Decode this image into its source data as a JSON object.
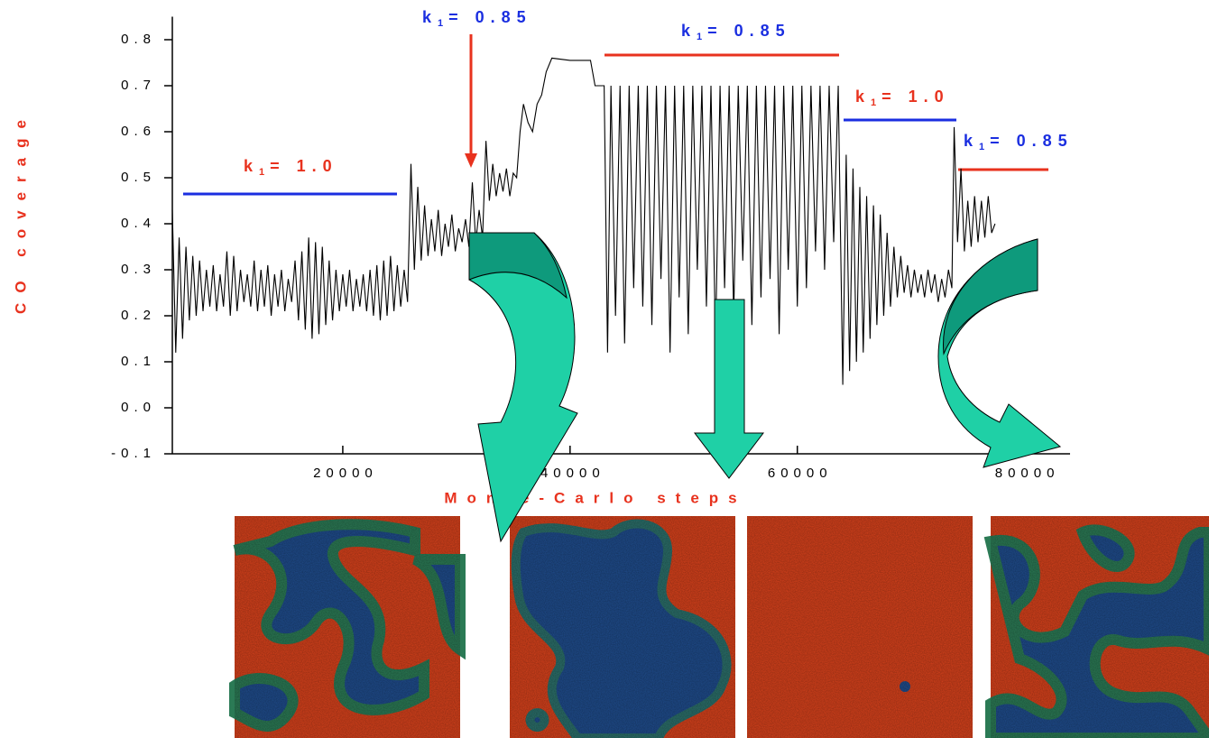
{
  "chart_data": {
    "type": "line",
    "ylabel": "CO coverage",
    "xlabel": "Monte-Carlo steps",
    "xlim": [
      5000,
      84000
    ],
    "xticks": [
      20000,
      40000,
      60000,
      80000
    ],
    "ylim": [
      -0.1,
      0.85
    ],
    "yticks": [
      -0.1,
      {
        "value": 0,
        "label": "0.0"
      },
      0.1,
      0.2,
      0.3,
      0.4,
      0.5,
      0.6,
      0.7,
      0.8
    ],
    "x": [
      5000,
      5300,
      5600,
      5900,
      6200,
      6500,
      6800,
      7100,
      7400,
      7700,
      8000,
      8300,
      8600,
      8900,
      9200,
      9500,
      9800,
      10100,
      10400,
      10700,
      11000,
      11300,
      11600,
      11900,
      12200,
      12500,
      12800,
      13100,
      13400,
      13700,
      14000,
      14300,
      14600,
      14900,
      15200,
      15500,
      15800,
      16100,
      16400,
      16700,
      17000,
      17300,
      17600,
      17900,
      18200,
      18500,
      18800,
      19100,
      19400,
      19700,
      20000,
      20300,
      20600,
      20900,
      21200,
      21500,
      21800,
      22100,
      22400,
      22700,
      23000,
      23300,
      23600,
      23900,
      24200,
      24500,
      24800,
      25100,
      25400,
      25700,
      26000,
      26300,
      26600,
      26900,
      27200,
      27500,
      27800,
      28100,
      28400,
      28700,
      29000,
      29300,
      29600,
      29900,
      30200,
      30500,
      30800,
      31100,
      31400,
      31700,
      32000,
      32300,
      32600,
      32900,
      33200,
      33500,
      33800,
      34100,
      34400,
      34700,
      35000,
      35300,
      35600,
      35900,
      36300,
      36700,
      37100,
      37500,
      37900,
      38400,
      40000,
      41800,
      42200,
      43000,
      43300,
      43600,
      44000,
      44400,
      44800,
      45200,
      45600,
      46000,
      46400,
      46800,
      47200,
      47600,
      48000,
      48400,
      48800,
      49200,
      49600,
      50000,
      50400,
      50800,
      51200,
      51600,
      52000,
      52400,
      52800,
      53200,
      53600,
      54000,
      54400,
      54800,
      55200,
      55600,
      56000,
      56400,
      56800,
      57200,
      57600,
      58000,
      58400,
      58800,
      59200,
      59600,
      60000,
      60400,
      60800,
      61200,
      61600,
      62000,
      62400,
      62800,
      63200,
      63600,
      64000,
      64300,
      64600,
      64900,
      65200,
      65500,
      65800,
      66100,
      66400,
      66700,
      67000,
      67300,
      67600,
      67900,
      68200,
      68500,
      68800,
      69100,
      69400,
      69700,
      70000,
      70300,
      70600,
      70900,
      71200,
      71500,
      71800,
      72100,
      72400,
      72700,
      73000,
      73300,
      73600,
      73800,
      74100,
      74400,
      74700,
      75000,
      75300,
      75600,
      75900,
      76200,
      76500,
      76800,
      77100,
      77400
    ],
    "series": [
      {
        "color": "#000000",
        "values": [
          0.43,
          0.12,
          0.37,
          0.15,
          0.35,
          0.19,
          0.33,
          0.2,
          0.32,
          0.21,
          0.3,
          0.22,
          0.31,
          0.21,
          0.29,
          0.22,
          0.34,
          0.2,
          0.33,
          0.21,
          0.3,
          0.23,
          0.29,
          0.22,
          0.32,
          0.21,
          0.3,
          0.22,
          0.31,
          0.2,
          0.29,
          0.22,
          0.3,
          0.21,
          0.28,
          0.23,
          0.32,
          0.19,
          0.34,
          0.17,
          0.37,
          0.15,
          0.36,
          0.16,
          0.35,
          0.18,
          0.32,
          0.19,
          0.3,
          0.21,
          0.29,
          0.22,
          0.3,
          0.21,
          0.28,
          0.22,
          0.29,
          0.21,
          0.3,
          0.2,
          0.31,
          0.19,
          0.32,
          0.2,
          0.33,
          0.21,
          0.31,
          0.22,
          0.3,
          0.23,
          0.53,
          0.3,
          0.48,
          0.32,
          0.44,
          0.33,
          0.41,
          0.34,
          0.43,
          0.33,
          0.4,
          0.35,
          0.42,
          0.34,
          0.39,
          0.36,
          0.41,
          0.35,
          0.49,
          0.36,
          0.43,
          0.37,
          0.58,
          0.45,
          0.53,
          0.46,
          0.51,
          0.47,
          0.52,
          0.46,
          0.51,
          0.5,
          0.6,
          0.66,
          0.62,
          0.6,
          0.66,
          0.68,
          0.73,
          0.76,
          0.755,
          0.755,
          0.7,
          0.7,
          0.12,
          0.7,
          0.2,
          0.7,
          0.14,
          0.7,
          0.26,
          0.7,
          0.22,
          0.7,
          0.18,
          0.7,
          0.28,
          0.7,
          0.12,
          0.7,
          0.24,
          0.7,
          0.16,
          0.7,
          0.3,
          0.7,
          0.22,
          0.7,
          0.14,
          0.7,
          0.26,
          0.7,
          0.2,
          0.7,
          0.32,
          0.7,
          0.18,
          0.7,
          0.24,
          0.7,
          0.28,
          0.7,
          0.16,
          0.7,
          0.3,
          0.7,
          0.22,
          0.7,
          0.26,
          0.7,
          0.34,
          0.7,
          0.3,
          0.7,
          0.36,
          0.7,
          0.05,
          0.55,
          0.08,
          0.52,
          0.1,
          0.48,
          0.12,
          0.46,
          0.15,
          0.44,
          0.18,
          0.42,
          0.2,
          0.38,
          0.22,
          0.35,
          0.24,
          0.33,
          0.25,
          0.31,
          0.24,
          0.3,
          0.25,
          0.29,
          0.24,
          0.3,
          0.25,
          0.29,
          0.23,
          0.28,
          0.24,
          0.3,
          0.26,
          0.61,
          0.36,
          0.52,
          0.34,
          0.45,
          0.35,
          0.46,
          0.36,
          0.45,
          0.37,
          0.46,
          0.38,
          0.4
        ]
      }
    ],
    "annotations": [
      {
        "text": "k",
        "sub": "1",
        "rest": "= 1.0",
        "color": "#e8321e"
      },
      {
        "text": "k",
        "sub": "1",
        "rest": "= 0.85",
        "color": "#1a2ee0"
      },
      {
        "text": "k",
        "sub": "1",
        "rest": "= 0.85",
        "color": "#1a2ee0"
      },
      {
        "text": "k",
        "sub": "1",
        "rest": "= 1.0",
        "color": "#e8321e"
      },
      {
        "text": "k",
        "sub": "1",
        "rest": "= 0.85",
        "color": "#1a2ee0"
      }
    ]
  }
}
